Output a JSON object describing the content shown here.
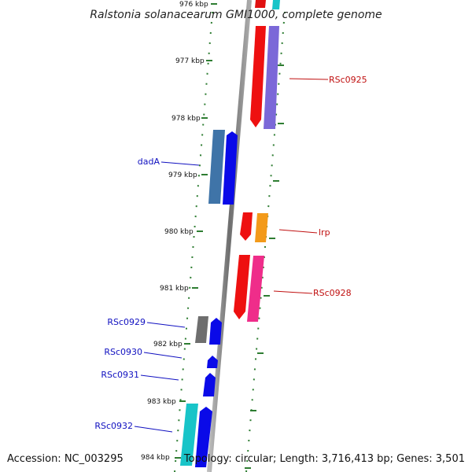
{
  "title": "Ralstonia solanacearum GMI1000, complete genome",
  "accession": "Accession: NC_003295",
  "topology": "Topology: circular; Length: 3,716,413 bp; Genes: 3,501",
  "ruler_labels": [
    "976 kbp",
    "977 kbp",
    "978 kbp",
    "979 kbp",
    "980 kbp",
    "981 kbp",
    "982 kbp",
    "983 kbp",
    "984 kbp"
  ],
  "gene_labels": [
    "RSc0925",
    "dadA",
    "lrp",
    "RSc0928",
    "RSc0929",
    "RSc0930",
    "RSc0931",
    "RSc0932"
  ],
  "colors": {
    "backbone": "#8c8c8c",
    "forward_label": "#c01010",
    "reverse_label": "#1010c0",
    "dots": "#2e7d32"
  }
}
